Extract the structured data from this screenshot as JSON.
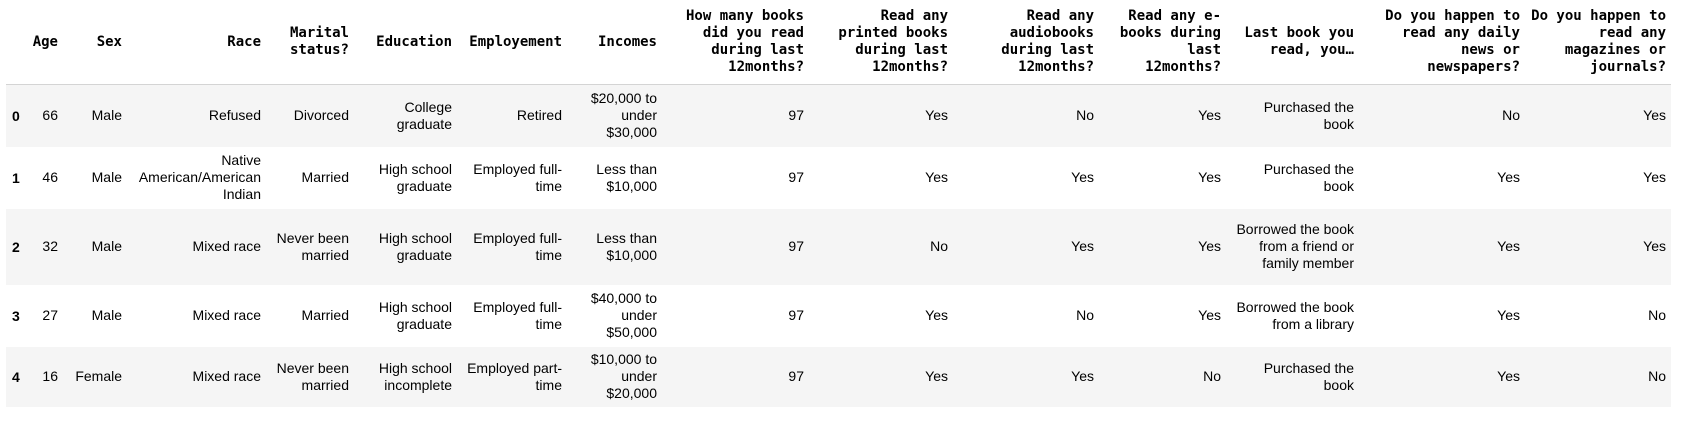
{
  "table": {
    "columns": [
      "Age",
      "Sex",
      "Race",
      "Marital status?",
      "Education",
      "Employement",
      "Incomes",
      "How many books did you read during last 12months?",
      "Read any printed books during last 12months?",
      "Read any audiobooks during last 12months?",
      "Read any e-books during last 12months?",
      "Last book you read, you…",
      "Do you happen to read any daily news or newspapers?",
      "Do you happen to read any magazines or journals?"
    ],
    "rows": [
      {
        "index": "0",
        "cells": [
          "66",
          "Male",
          "Refused",
          "Divorced",
          "College graduate",
          "Retired",
          "$20,000 to under $30,000",
          "97",
          "Yes",
          "No",
          "Yes",
          "Purchased the book",
          "No",
          "Yes"
        ]
      },
      {
        "index": "1",
        "cells": [
          "46",
          "Male",
          "Native American/American Indian",
          "Married",
          "High school graduate",
          "Employed full-time",
          "Less than $10,000",
          "97",
          "Yes",
          "Yes",
          "Yes",
          "Purchased the book",
          "Yes",
          "Yes"
        ]
      },
      {
        "index": "2",
        "cells": [
          "32",
          "Male",
          "Mixed race",
          "Never been married",
          "High school graduate",
          "Employed full-time",
          "Less than $10,000",
          "97",
          "No",
          "Yes",
          "Yes",
          "Borrowed the book from a friend or family member",
          "Yes",
          "Yes"
        ]
      },
      {
        "index": "3",
        "cells": [
          "27",
          "Male",
          "Mixed race",
          "Married",
          "High school graduate",
          "Employed full-time",
          "$40,000 to under $50,000",
          "97",
          "Yes",
          "No",
          "Yes",
          "Borrowed the book from a library",
          "Yes",
          "No"
        ]
      },
      {
        "index": "4",
        "cells": [
          "16",
          "Female",
          "Mixed race",
          "Never been married",
          "High school incomplete",
          "Employed part-time",
          "$10,000 to under $20,000",
          "97",
          "Yes",
          "Yes",
          "No",
          "Purchased the book",
          "Yes",
          "No"
        ]
      }
    ]
  }
}
